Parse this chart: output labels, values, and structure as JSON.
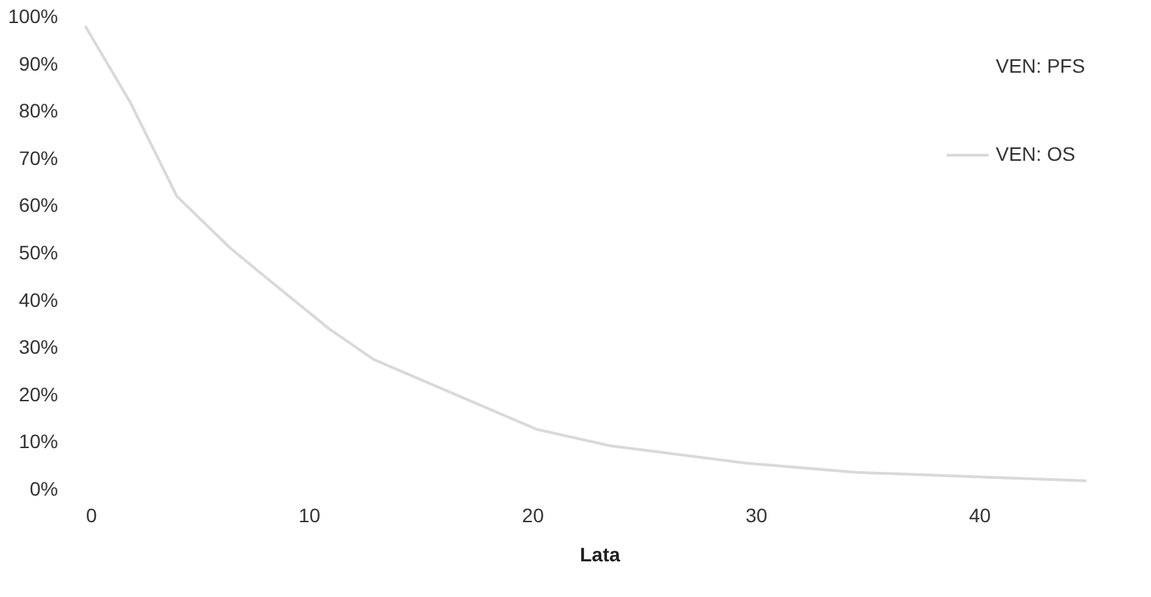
{
  "chart_data": {
    "type": "line",
    "xlabel": "Lata",
    "x": [
      0,
      2,
      4.1,
      6.5,
      8.3,
      10.9,
      12.9,
      16.4,
      20.2,
      23.5,
      29.5,
      34.5,
      39.6,
      44.8
    ],
    "series": [
      {
        "name": "VEN: PFS",
        "values": [
          null,
          null,
          null,
          null,
          null,
          null,
          null,
          null,
          null,
          null,
          null,
          null,
          null,
          null
        ]
      },
      {
        "name": "VEN: OS",
        "color": "#d9d9d9",
        "values": [
          98,
          82,
          62,
          51,
          44,
          34,
          27.5,
          20.4,
          12.7,
          9.2,
          5.6,
          3.6,
          2.7,
          1.8
        ]
      }
    ],
    "xlim": [
      0,
      46
    ],
    "xticks": [
      0,
      10,
      20,
      30,
      40
    ],
    "ylim": [
      0,
      100
    ],
    "yticks": [
      {
        "value": 0,
        "label": "0%"
      },
      {
        "value": 10,
        "label": "10%"
      },
      {
        "value": 20,
        "label": "20%"
      },
      {
        "value": 30,
        "label": "30%"
      },
      {
        "value": 40,
        "label": "40%"
      },
      {
        "value": 50,
        "label": "50%"
      },
      {
        "value": 60,
        "label": "60%"
      },
      {
        "value": 70,
        "label": "70%"
      },
      {
        "value": 80,
        "label": "80%"
      },
      {
        "value": 90,
        "label": "90%"
      },
      {
        "value": 100,
        "label": "100%"
      }
    ],
    "grid": false,
    "legend": "top right",
    "marker": "none",
    "line_style": "solid"
  }
}
